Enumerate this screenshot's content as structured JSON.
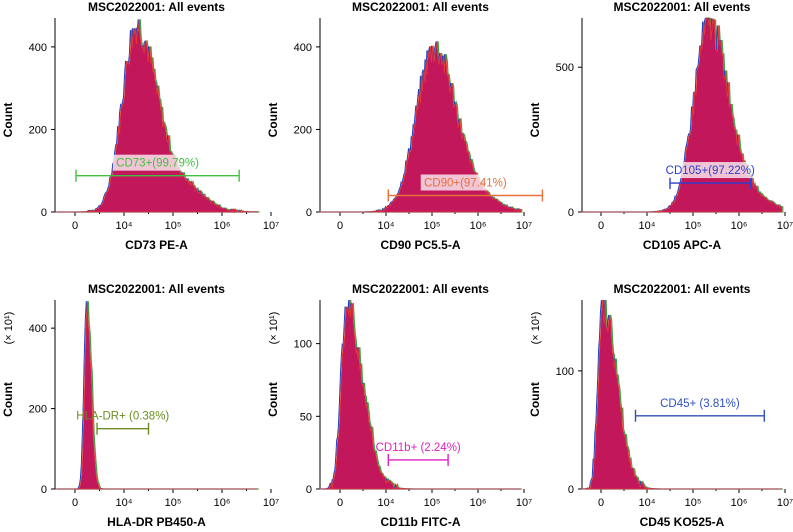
{
  "colors": {
    "fill": "#c2185b",
    "edge_red": "#e53935",
    "edge_green": "#43a047",
    "edge_blue": "#1e40c0"
  },
  "chart_data": [
    {
      "type": "area",
      "title": "MSC2022001: All events",
      "xlabel": "CD73 PE-A",
      "ylabel": "Count",
      "y_multiplier": "",
      "x_ticks": [
        "0",
        "10⁴",
        "10⁵",
        "10⁶",
        "10⁷"
      ],
      "y_ticks": [
        0,
        200,
        400
      ],
      "ylim": [
        0,
        470
      ],
      "peak": {
        "center": 1.25,
        "height": 440,
        "left_width": 0.28,
        "right_width": 0.4,
        "shoulder": 0.15
      },
      "gate": {
        "label": "CD73+(99.79%)",
        "range": [
          0.02,
          3.35
        ],
        "y": 88,
        "color": "#43c043",
        "label_box": true
      }
    },
    {
      "type": "area",
      "title": "MSC2022001: All events",
      "xlabel": "CD90 PC5.5-A",
      "ylabel": "Count",
      "y_multiplier": "",
      "x_ticks": [
        "0",
        "10⁴",
        "10⁵",
        "10⁶",
        "10⁷"
      ],
      "y_ticks": [
        0,
        200,
        400
      ],
      "ylim": [
        0,
        470
      ],
      "peak": {
        "center": 2.05,
        "height": 390,
        "left_width": 0.38,
        "right_width": 0.45,
        "shoulder": 0.1
      },
      "gate": {
        "label": "CD90+(97.41%)",
        "range": [
          1.05,
          4.4
        ],
        "y": 40,
        "color": "#e8703a",
        "label_box": true
      }
    },
    {
      "type": "area",
      "title": "MSC2022001: All events",
      "xlabel": "CD105 APC-A",
      "ylabel": "Count",
      "y_multiplier": "",
      "x_ticks": [
        "0",
        "10⁴",
        "10⁵",
        "10⁶",
        "10⁷"
      ],
      "y_ticks": [
        0,
        500
      ],
      "ylim": [
        0,
        670
      ],
      "peak": {
        "center": 2.35,
        "height": 640,
        "left_width": 0.32,
        "right_width": 0.42,
        "shoulder": 0.08
      },
      "gate": {
        "label": "CD105+(97.22%)",
        "range": [
          1.5,
          3.25
        ],
        "y": 100,
        "color": "#2a3fd0",
        "label_box": true
      }
    },
    {
      "type": "area",
      "title": "MSC2022001: All events",
      "xlabel": "HLA-DR PB450-A",
      "ylabel": "Count",
      "y_multiplier": "(× 10¹)",
      "x_ticks": [
        "0",
        "10⁴",
        "10⁵",
        "10⁶",
        "10⁷"
      ],
      "y_ticks": [
        0,
        200,
        400
      ],
      "ylim": [
        0,
        470
      ],
      "peak": {
        "center": 0.25,
        "height": 455,
        "left_width": 0.05,
        "right_width": 0.08,
        "shoulder": 0.0
      },
      "gate": {
        "label": "HLA-DR+ (0.38%)",
        "range": [
          0.45,
          1.5
        ],
        "y": 150,
        "color": "#6b8e23",
        "label_box": false
      }
    },
    {
      "type": "area",
      "title": "MSC2022001: All events",
      "xlabel": "CD11b FITC-A",
      "ylabel": "Count",
      "y_multiplier": "(× 10¹)",
      "x_ticks": [
        "0",
        "10⁴",
        "10⁵",
        "10⁶",
        "10⁷"
      ],
      "y_ticks": [
        0,
        50,
        100
      ],
      "ylim": [
        0,
        130
      ],
      "peak": {
        "center": 0.15,
        "height": 122,
        "left_width": 0.12,
        "right_width": 0.35,
        "shoulder": 0.0
      },
      "gate": {
        "label": "CD11b+ (2.24%)",
        "range": [
          1.05,
          2.35
        ],
        "y": 20,
        "color": "#e020c0",
        "label_box": false
      }
    },
    {
      "type": "area",
      "title": "MSC2022001: All events",
      "xlabel": "CD45 KO525-A",
      "ylabel": "Count",
      "y_multiplier": "(× 10¹)",
      "x_ticks": [
        "0",
        "10⁴",
        "10⁵",
        "10⁶",
        "10⁷"
      ],
      "y_ticks": [
        0,
        100
      ],
      "ylim": [
        0,
        160
      ],
      "peak": {
        "center": 0.05,
        "height": 152,
        "left_width": 0.1,
        "right_width": 0.3,
        "shoulder": 0.0
      },
      "gate": {
        "label": "CD45+ (3.81%)",
        "range": [
          0.75,
          3.55
        ],
        "y": 62,
        "color": "#3050c0",
        "label_box": false
      }
    }
  ]
}
